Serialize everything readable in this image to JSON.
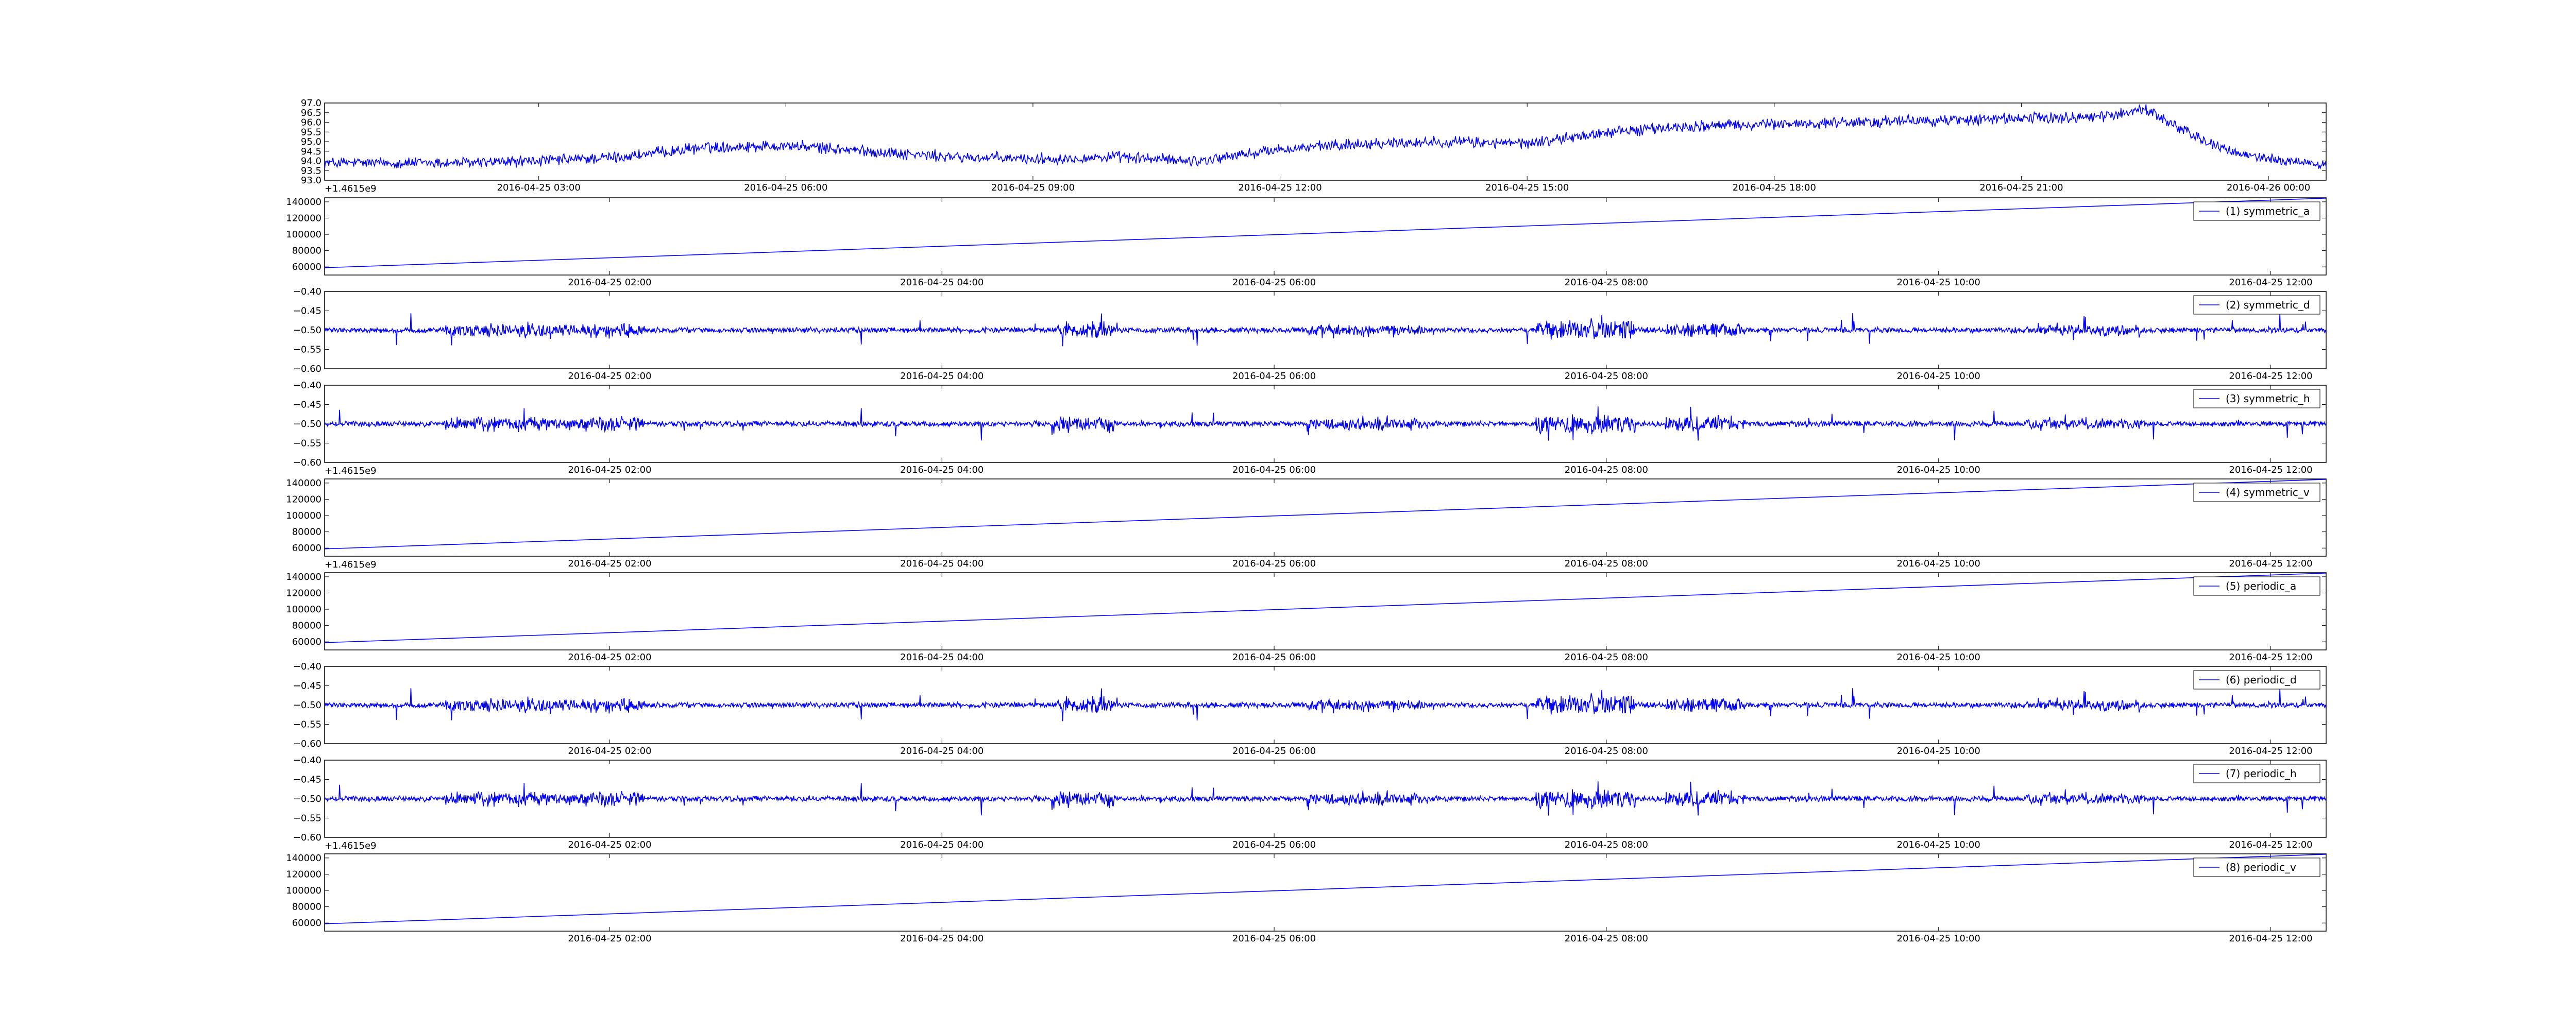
{
  "chart_data": [
    {
      "type": "line",
      "series": [
        {
          "color": "#0000ff"
        }
      ],
      "ylim": [
        93.0,
        97.0
      ],
      "y_ticks": [
        "93.0",
        "93.5",
        "94.0",
        "94.5",
        "95.0",
        "95.5",
        "96.0",
        "96.5",
        "97.0"
      ],
      "x_ticks": [
        "2016-04-25 03:00",
        "2016-04-25 06:00",
        "2016-04-25 09:00",
        "2016-04-25 12:00",
        "2016-04-25 15:00",
        "2016-04-25 18:00",
        "2016-04-25 21:00",
        "2016-04-26 00:00"
      ],
      "xlim": [
        "2016-04-25 00:24",
        "2016-04-26 00:42"
      ],
      "offset_text": "+1.4615e9",
      "approx_points": [
        [
          "2016-04-25 00:24",
          93.9
        ],
        [
          "2016-04-25 02:00",
          93.9
        ],
        [
          "2016-04-25 03:00",
          94.0
        ],
        [
          "2016-04-25 04:00",
          94.2
        ],
        [
          "2016-04-25 05:00",
          94.7
        ],
        [
          "2016-04-25 06:00",
          94.8
        ],
        [
          "2016-04-25 07:00",
          94.5
        ],
        [
          "2016-04-25 08:00",
          94.2
        ],
        [
          "2016-04-25 09:00",
          94.1
        ],
        [
          "2016-04-25 10:00",
          94.2
        ],
        [
          "2016-04-25 11:00",
          94.0
        ],
        [
          "2016-04-25 12:00",
          94.6
        ],
        [
          "2016-04-25 13:00",
          94.9
        ],
        [
          "2016-04-25 14:00",
          95.0
        ],
        [
          "2016-04-25 15:00",
          94.9
        ],
        [
          "2016-04-25 16:00",
          95.5
        ],
        [
          "2016-04-25 17:00",
          95.8
        ],
        [
          "2016-04-25 18:00",
          95.9
        ],
        [
          "2016-04-25 19:00",
          96.0
        ],
        [
          "2016-04-25 20:00",
          96.1
        ],
        [
          "2016-04-25 21:00",
          96.2
        ],
        [
          "2016-04-25 22:00",
          96.3
        ],
        [
          "2016-04-25 22:30",
          96.7
        ],
        [
          "2016-04-25 23:00",
          95.5
        ],
        [
          "2016-04-25 23:30",
          94.5
        ],
        [
          "2016-04-26 00:00",
          94.1
        ],
        [
          "2016-04-26 00:42",
          93.8
        ]
      ],
      "grid": false
    },
    {
      "type": "line",
      "series": [
        {
          "name": "(1) symmetric_a",
          "color": "#0000ff"
        }
      ],
      "ylim": [
        50000,
        145000
      ],
      "y_ticks": [
        "60000",
        "80000",
        "100000",
        "120000",
        "140000"
      ],
      "x_ticks": [
        "2016-04-25 02:00",
        "2016-04-25 04:00",
        "2016-04-25 06:00",
        "2016-04-25 08:00",
        "2016-04-25 10:00",
        "2016-04-25 12:00"
      ],
      "xlim": [
        "2016-04-25 00:17",
        "2016-04-25 12:20"
      ],
      "approx_points": [
        [
          "2016-04-25 00:17",
          59000
        ],
        [
          "2016-04-25 12:20",
          144500
        ]
      ],
      "legend_position": "top-right",
      "grid": false
    },
    {
      "type": "line",
      "series": [
        {
          "name": "(2) symmetric_d",
          "color": "#0000ff"
        }
      ],
      "ylim": [
        -0.6,
        -0.4
      ],
      "y_ticks": [
        "−0.60",
        "−0.55",
        "−0.50",
        "−0.45",
        "−0.40"
      ],
      "x_ticks": [
        "2016-04-25 02:00",
        "2016-04-25 04:00",
        "2016-04-25 06:00",
        "2016-04-25 08:00",
        "2016-04-25 10:00",
        "2016-04-25 12:00"
      ],
      "xlim": [
        "2016-04-25 00:17",
        "2016-04-25 12:20"
      ],
      "baseline": -0.5,
      "legend_position": "top-right",
      "grid": false
    },
    {
      "type": "line",
      "series": [
        {
          "name": "(3) symmetric_h",
          "color": "#0000ff"
        }
      ],
      "ylim": [
        -0.6,
        -0.4
      ],
      "y_ticks": [
        "−0.60",
        "−0.55",
        "−0.50",
        "−0.45",
        "−0.40"
      ],
      "x_ticks": [
        "2016-04-25 02:00",
        "2016-04-25 04:00",
        "2016-04-25 06:00",
        "2016-04-25 08:00",
        "2016-04-25 10:00",
        "2016-04-25 12:00"
      ],
      "xlim": [
        "2016-04-25 00:17",
        "2016-04-25 12:20"
      ],
      "offset_text": "+1.4615e9",
      "baseline": -0.5,
      "legend_position": "top-right",
      "grid": false
    },
    {
      "type": "line",
      "series": [
        {
          "name": "(4) symmetric_v",
          "color": "#0000ff"
        }
      ],
      "ylim": [
        50000,
        145000
      ],
      "y_ticks": [
        "60000",
        "80000",
        "100000",
        "120000",
        "140000"
      ],
      "x_ticks": [
        "2016-04-25 02:00",
        "2016-04-25 04:00",
        "2016-04-25 06:00",
        "2016-04-25 08:00",
        "2016-04-25 10:00",
        "2016-04-25 12:00"
      ],
      "xlim": [
        "2016-04-25 00:17",
        "2016-04-25 12:20"
      ],
      "offset_text": "+1.4615e9",
      "approx_points": [
        [
          "2016-04-25 00:17",
          59000
        ],
        [
          "2016-04-25 12:20",
          144500
        ]
      ],
      "legend_position": "top-right",
      "grid": false
    },
    {
      "type": "line",
      "series": [
        {
          "name": "(5) periodic_a",
          "color": "#0000ff"
        }
      ],
      "ylim": [
        50000,
        145000
      ],
      "y_ticks": [
        "60000",
        "80000",
        "100000",
        "120000",
        "140000"
      ],
      "x_ticks": [
        "2016-04-25 02:00",
        "2016-04-25 04:00",
        "2016-04-25 06:00",
        "2016-04-25 08:00",
        "2016-04-25 10:00",
        "2016-04-25 12:00"
      ],
      "xlim": [
        "2016-04-25 00:17",
        "2016-04-25 12:20"
      ],
      "approx_points": [
        [
          "2016-04-25 00:17",
          59000
        ],
        [
          "2016-04-25 12:20",
          144500
        ]
      ],
      "legend_position": "top-right",
      "grid": false
    },
    {
      "type": "line",
      "series": [
        {
          "name": "(6) periodic_d",
          "color": "#0000ff"
        }
      ],
      "ylim": [
        -0.6,
        -0.4
      ],
      "y_ticks": [
        "−0.60",
        "−0.55",
        "−0.50",
        "−0.45",
        "−0.40"
      ],
      "x_ticks": [
        "2016-04-25 02:00",
        "2016-04-25 04:00",
        "2016-04-25 06:00",
        "2016-04-25 08:00",
        "2016-04-25 10:00",
        "2016-04-25 12:00"
      ],
      "xlim": [
        "2016-04-25 00:17",
        "2016-04-25 12:20"
      ],
      "baseline": -0.5,
      "legend_position": "top-right",
      "grid": false
    },
    {
      "type": "line",
      "series": [
        {
          "name": "(7) periodic_h",
          "color": "#0000ff"
        }
      ],
      "ylim": [
        -0.6,
        -0.4
      ],
      "y_ticks": [
        "−0.60",
        "−0.55",
        "−0.50",
        "−0.45",
        "−0.40"
      ],
      "x_ticks": [
        "2016-04-25 02:00",
        "2016-04-25 04:00",
        "2016-04-25 06:00",
        "2016-04-25 08:00",
        "2016-04-25 10:00",
        "2016-04-25 12:00"
      ],
      "xlim": [
        "2016-04-25 00:17",
        "2016-04-25 12:20"
      ],
      "offset_text": "+1.4615e9",
      "baseline": -0.5,
      "legend_position": "top-right",
      "grid": false
    },
    {
      "type": "line",
      "series": [
        {
          "name": "(8) periodic_v",
          "color": "#0000ff"
        }
      ],
      "ylim": [
        50000,
        145000
      ],
      "y_ticks": [
        "60000",
        "80000",
        "100000",
        "120000",
        "140000"
      ],
      "x_ticks": [
        "2016-04-25 02:00",
        "2016-04-25 04:00",
        "2016-04-25 06:00",
        "2016-04-25 08:00",
        "2016-04-25 10:00",
        "2016-04-25 12:00"
      ],
      "xlim": [
        "2016-04-25 00:17",
        "2016-04-25 12:20"
      ],
      "approx_points": [
        [
          "2016-04-25 00:17",
          59000
        ],
        [
          "2016-04-25 12:20",
          144500
        ]
      ],
      "legend_position": "top-right",
      "grid": false
    }
  ]
}
